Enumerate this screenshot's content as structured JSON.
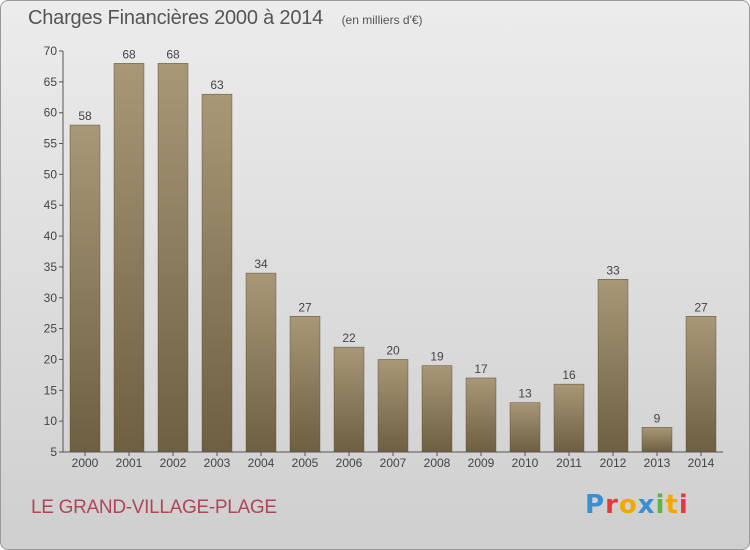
{
  "header": {
    "title": "Charges Financières 2000 à 2014",
    "unit": "(en milliers d'€)"
  },
  "footer": {
    "commune": "LE GRAND-VILLAGE-PLAGE",
    "logo": "Proxiti"
  },
  "colors": {
    "bar_top": "#a89878",
    "bar_bottom": "#6e5f42",
    "logo_letters": [
      "#3a8fd0",
      "#e8383a",
      "#f2a900",
      "#3a8fd0",
      "#5bb540",
      "#f2a900",
      "#e8383a"
    ]
  },
  "chart_data": {
    "type": "bar",
    "title": "Charges Financières 2000 à 2014",
    "subtitle": "(en milliers d'€)",
    "xlabel": "",
    "ylabel": "",
    "categories": [
      "2000",
      "2001",
      "2002",
      "2003",
      "2004",
      "2005",
      "2006",
      "2007",
      "2008",
      "2009",
      "2010",
      "2011",
      "2012",
      "2013",
      "2014"
    ],
    "values": [
      58,
      68,
      68,
      63,
      34,
      27,
      22,
      20,
      19,
      17,
      13,
      16,
      33,
      9,
      27
    ],
    "ylim": [
      5,
      70
    ],
    "yticks": [
      5,
      10,
      15,
      20,
      25,
      30,
      35,
      40,
      45,
      50,
      55,
      60,
      65,
      70
    ],
    "grid": false,
    "legend": "none"
  }
}
